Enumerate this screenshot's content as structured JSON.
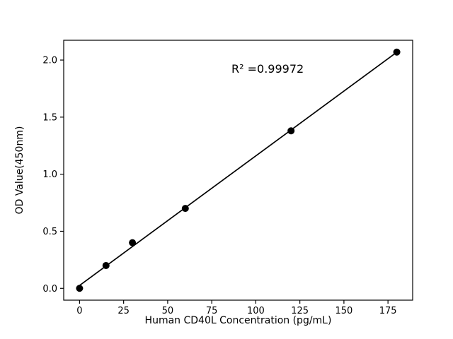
{
  "chart_data": {
    "type": "scatter",
    "x": [
      0,
      15,
      30,
      60,
      120,
      180
    ],
    "y": [
      0.0,
      0.2,
      0.4,
      0.7,
      1.38,
      2.07
    ],
    "fit": "linear",
    "title": "",
    "xlabel": "Human CD40L Concentration (pg/mL)",
    "ylabel": "OD Value(450nm)",
    "annotation": {
      "text": "R² =0.99972",
      "x": 87,
      "y": 1.91
    },
    "xlim": [
      -9,
      189
    ],
    "ylim": [
      -0.1035,
      2.1735
    ],
    "xticks": [
      {
        "v": 0,
        "label": "0"
      },
      {
        "v": 25,
        "label": "25"
      },
      {
        "v": 50,
        "label": "50"
      },
      {
        "v": 75,
        "label": "75"
      },
      {
        "v": 100,
        "label": "100"
      },
      {
        "v": 125,
        "label": "125"
      },
      {
        "v": 150,
        "label": "150"
      },
      {
        "v": 175,
        "label": "175"
      }
    ],
    "yticks": [
      {
        "v": 0.0,
        "label": "0.0"
      },
      {
        "v": 0.5,
        "label": "0.5"
      },
      {
        "v": 1.0,
        "label": "1.0"
      },
      {
        "v": 1.5,
        "label": "1.5"
      },
      {
        "v": 2.0,
        "label": "2.0"
      }
    ],
    "grid": false,
    "legend": null,
    "line_color": "#000000",
    "marker_color": "#000000",
    "background_color": "#ffffff"
  }
}
